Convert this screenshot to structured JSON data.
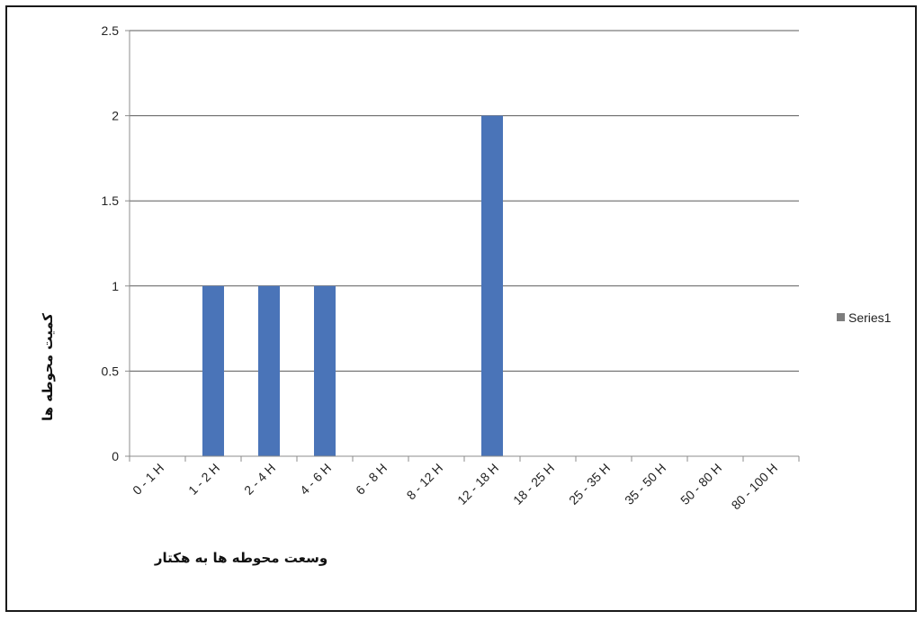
{
  "chart_data": {
    "type": "bar",
    "categories": [
      "0 - 1 H",
      "1 - 2 H",
      "2 - 4 H",
      "4 - 6 H",
      "6 - 8 H",
      "8 - 12 H",
      "12 - 18 H",
      "18 - 25 H",
      "25 - 35 H",
      "35 - 50 H",
      "50 - 80 H",
      "80 - 100 H"
    ],
    "series": [
      {
        "name": "Series1",
        "values": [
          0,
          1,
          1,
          1,
          0,
          0,
          2,
          0,
          0,
          0,
          0,
          0
        ]
      }
    ],
    "xlabel": "وسعت محوطه ها به هکتار",
    "ylabel": "کمیت محوطه ها",
    "ylim": [
      0,
      2.5
    ],
    "yticks": [
      "0",
      "0.5",
      "1",
      "1.5",
      "2",
      "2.5"
    ],
    "grid": true,
    "legend_position": "right",
    "colors": {
      "bar": "#4a74b8",
      "grid": "#5a5a5a",
      "axis": "#8c8c8c"
    }
  }
}
